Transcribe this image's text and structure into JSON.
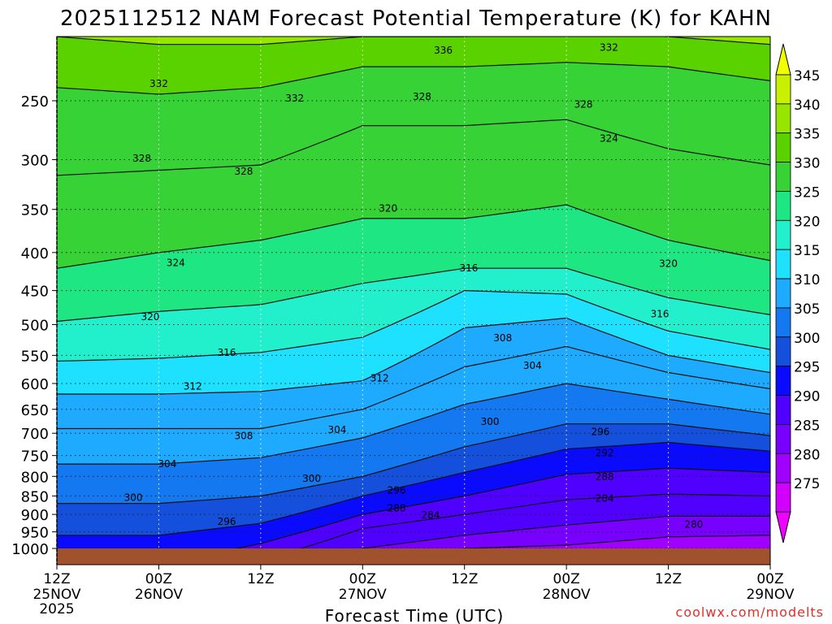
{
  "chart_data": {
    "type": "heatmap",
    "title": "2025112512 NAM Forecast Potential Temperature (K) for KAHN",
    "xlabel": "Forecast Time (UTC)",
    "ylabel": "",
    "credit": "coolwx.com/modelts",
    "y_scale": "log-pressure",
    "y_ticks": [
      "250",
      "300",
      "350",
      "400",
      "450",
      "500",
      "550",
      "600",
      "650",
      "700",
      "750",
      "800",
      "850",
      "900",
      "950",
      "1000"
    ],
    "x_ticks": [
      {
        "hour": "12Z",
        "date": "25NOV",
        "year": "2025"
      },
      {
        "hour": "00Z",
        "date": "26NOV",
        "year": ""
      },
      {
        "hour": "12Z",
        "date": "",
        "year": ""
      },
      {
        "hour": "00Z",
        "date": "27NOV",
        "year": ""
      },
      {
        "hour": "12Z",
        "date": "",
        "year": ""
      },
      {
        "hour": "00Z",
        "date": "28NOV",
        "year": ""
      },
      {
        "hour": "12Z",
        "date": "",
        "year": ""
      },
      {
        "hour": "00Z",
        "date": "29NOV",
        "year": ""
      }
    ],
    "x_range_hours": [
      0,
      84
    ],
    "y_range_hpa": [
      200,
      1000
    ],
    "colorbar": {
      "ticks": [
        "345",
        "340",
        "335",
        "330",
        "325",
        "320",
        "315",
        "310",
        "305",
        "300",
        "295",
        "290",
        "285",
        "280",
        "275"
      ],
      "colors": [
        "#f0ff00",
        "#c8f000",
        "#96e600",
        "#5ad200",
        "#36d236",
        "#1ee682",
        "#22f0cc",
        "#1ee1ff",
        "#1eaaff",
        "#1478f0",
        "#1450dc",
        "#0a0aff",
        "#5000ff",
        "#7800ff",
        "#a000ff",
        "#d200ff",
        "#f000ff"
      ]
    },
    "isentropes": [
      {
        "theta": 280,
        "profile": [
          [
            0,
            1050
          ],
          [
            12,
            1050
          ],
          [
            24,
            1050
          ],
          [
            36,
            1050
          ],
          [
            48,
            1000
          ],
          [
            60,
            990
          ],
          [
            72,
            965
          ],
          [
            84,
            960
          ]
        ]
      },
      {
        "theta": 284,
        "profile": [
          [
            0,
            1050
          ],
          [
            12,
            1050
          ],
          [
            24,
            1050
          ],
          [
            36,
            1000
          ],
          [
            48,
            960
          ],
          [
            60,
            930
          ],
          [
            72,
            905
          ],
          [
            84,
            905
          ]
        ]
      },
      {
        "theta": 288,
        "profile": [
          [
            0,
            1050
          ],
          [
            12,
            1050
          ],
          [
            24,
            1040
          ],
          [
            36,
            940
          ],
          [
            48,
            900
          ],
          [
            60,
            860
          ],
          [
            72,
            845
          ],
          [
            84,
            850
          ]
        ]
      },
      {
        "theta": 292,
        "profile": [
          [
            0,
            1050
          ],
          [
            12,
            1050
          ],
          [
            24,
            985
          ],
          [
            36,
            900
          ],
          [
            48,
            850
          ],
          [
            60,
            795
          ],
          [
            72,
            780
          ],
          [
            84,
            790
          ]
        ]
      },
      {
        "theta": 296,
        "profile": [
          [
            0,
            960
          ],
          [
            12,
            960
          ],
          [
            24,
            925
          ],
          [
            36,
            850
          ],
          [
            48,
            790
          ],
          [
            60,
            735
          ],
          [
            72,
            720
          ],
          [
            84,
            740
          ]
        ]
      },
      {
        "theta": 300,
        "profile": [
          [
            0,
            870
          ],
          [
            12,
            870
          ],
          [
            24,
            850
          ],
          [
            36,
            800
          ],
          [
            48,
            730
          ],
          [
            60,
            680
          ],
          [
            72,
            680
          ],
          [
            84,
            705
          ]
        ]
      },
      {
        "theta": 304,
        "profile": [
          [
            0,
            770
          ],
          [
            12,
            770
          ],
          [
            24,
            755
          ],
          [
            36,
            710
          ],
          [
            48,
            640
          ],
          [
            60,
            600
          ],
          [
            72,
            630
          ],
          [
            84,
            660
          ]
        ]
      },
      {
        "theta": 308,
        "profile": [
          [
            0,
            690
          ],
          [
            12,
            690
          ],
          [
            24,
            690
          ],
          [
            36,
            650
          ],
          [
            48,
            570
          ],
          [
            60,
            535
          ],
          [
            72,
            580
          ],
          [
            84,
            610
          ]
        ]
      },
      {
        "theta": 312,
        "profile": [
          [
            0,
            620
          ],
          [
            12,
            620
          ],
          [
            24,
            615
          ],
          [
            36,
            595
          ],
          [
            48,
            505
          ],
          [
            60,
            490
          ],
          [
            72,
            550
          ],
          [
            84,
            580
          ]
        ]
      },
      {
        "theta": 316,
        "profile": [
          [
            0,
            560
          ],
          [
            12,
            555
          ],
          [
            24,
            545
          ],
          [
            36,
            520
          ],
          [
            48,
            450
          ],
          [
            60,
            455
          ],
          [
            72,
            510
          ],
          [
            84,
            540
          ]
        ]
      },
      {
        "theta": 320,
        "profile": [
          [
            0,
            495
          ],
          [
            12,
            480
          ],
          [
            24,
            470
          ],
          [
            36,
            440
          ],
          [
            48,
            420
          ],
          [
            60,
            420
          ],
          [
            72,
            460
          ],
          [
            84,
            485
          ]
        ]
      },
      {
        "theta": 324,
        "profile": [
          [
            0,
            420
          ],
          [
            12,
            400
          ],
          [
            24,
            385
          ],
          [
            36,
            360
          ],
          [
            48,
            360
          ],
          [
            60,
            345
          ],
          [
            72,
            385
          ],
          [
            84,
            410
          ]
        ]
      },
      {
        "theta": 328,
        "profile": [
          [
            0,
            315
          ],
          [
            12,
            310
          ],
          [
            24,
            305
          ],
          [
            36,
            270
          ],
          [
            48,
            270
          ],
          [
            60,
            265
          ],
          [
            72,
            290
          ],
          [
            84,
            305
          ]
        ]
      },
      {
        "theta": 332,
        "profile": [
          [
            0,
            240
          ],
          [
            12,
            245
          ],
          [
            24,
            240
          ],
          [
            36,
            225
          ],
          [
            48,
            225
          ],
          [
            60,
            222
          ],
          [
            72,
            225
          ],
          [
            84,
            235
          ]
        ]
      },
      {
        "theta": 336,
        "profile": [
          [
            0,
            205
          ],
          [
            12,
            210
          ],
          [
            24,
            210
          ],
          [
            36,
            205
          ],
          [
            48,
            205
          ],
          [
            60,
            203
          ],
          [
            72,
            205
          ],
          [
            84,
            210
          ]
        ]
      }
    ],
    "contour_labels": [
      {
        "text": "336",
        "hour": 45.5,
        "p": 214
      },
      {
        "text": "332",
        "hour": 65,
        "p": 212
      },
      {
        "text": "332",
        "hour": 12,
        "p": 237
      },
      {
        "text": "332",
        "hour": 28,
        "p": 248
      },
      {
        "text": "328",
        "hour": 43,
        "p": 247
      },
      {
        "text": "328",
        "hour": 62,
        "p": 253
      },
      {
        "text": "328",
        "hour": 10,
        "p": 299
      },
      {
        "text": "328",
        "hour": 22,
        "p": 311
      },
      {
        "text": "324",
        "hour": 65,
        "p": 281
      },
      {
        "text": "320",
        "hour": 39,
        "p": 349
      },
      {
        "text": "320",
        "hour": 72,
        "p": 414
      },
      {
        "text": "324",
        "hour": 14,
        "p": 413
      },
      {
        "text": "316",
        "hour": 48.5,
        "p": 420
      },
      {
        "text": "316",
        "hour": 71,
        "p": 484
      },
      {
        "text": "320",
        "hour": 11,
        "p": 488
      },
      {
        "text": "316",
        "hour": 20,
        "p": 545
      },
      {
        "text": "308",
        "hour": 52.5,
        "p": 521
      },
      {
        "text": "312",
        "hour": 16,
        "p": 605
      },
      {
        "text": "312",
        "hour": 38,
        "p": 590
      },
      {
        "text": "304",
        "hour": 56,
        "p": 568
      },
      {
        "text": "308",
        "hour": 22,
        "p": 706
      },
      {
        "text": "304",
        "hour": 33,
        "p": 693
      },
      {
        "text": "300",
        "hour": 51,
        "p": 675
      },
      {
        "text": "296",
        "hour": 64,
        "p": 697
      },
      {
        "text": "292",
        "hour": 64.5,
        "p": 744
      },
      {
        "text": "288",
        "hour": 64.5,
        "p": 801
      },
      {
        "text": "284",
        "hour": 64.5,
        "p": 857
      },
      {
        "text": "304",
        "hour": 13,
        "p": 770
      },
      {
        "text": "300",
        "hour": 30,
        "p": 805
      },
      {
        "text": "296",
        "hour": 40,
        "p": 835
      },
      {
        "text": "288",
        "hour": 40,
        "p": 883
      },
      {
        "text": "284",
        "hour": 44,
        "p": 902
      },
      {
        "text": "300",
        "hour": 9,
        "p": 854
      },
      {
        "text": "296",
        "hour": 20,
        "p": 920
      },
      {
        "text": "280",
        "hour": 75,
        "p": 928
      }
    ]
  }
}
